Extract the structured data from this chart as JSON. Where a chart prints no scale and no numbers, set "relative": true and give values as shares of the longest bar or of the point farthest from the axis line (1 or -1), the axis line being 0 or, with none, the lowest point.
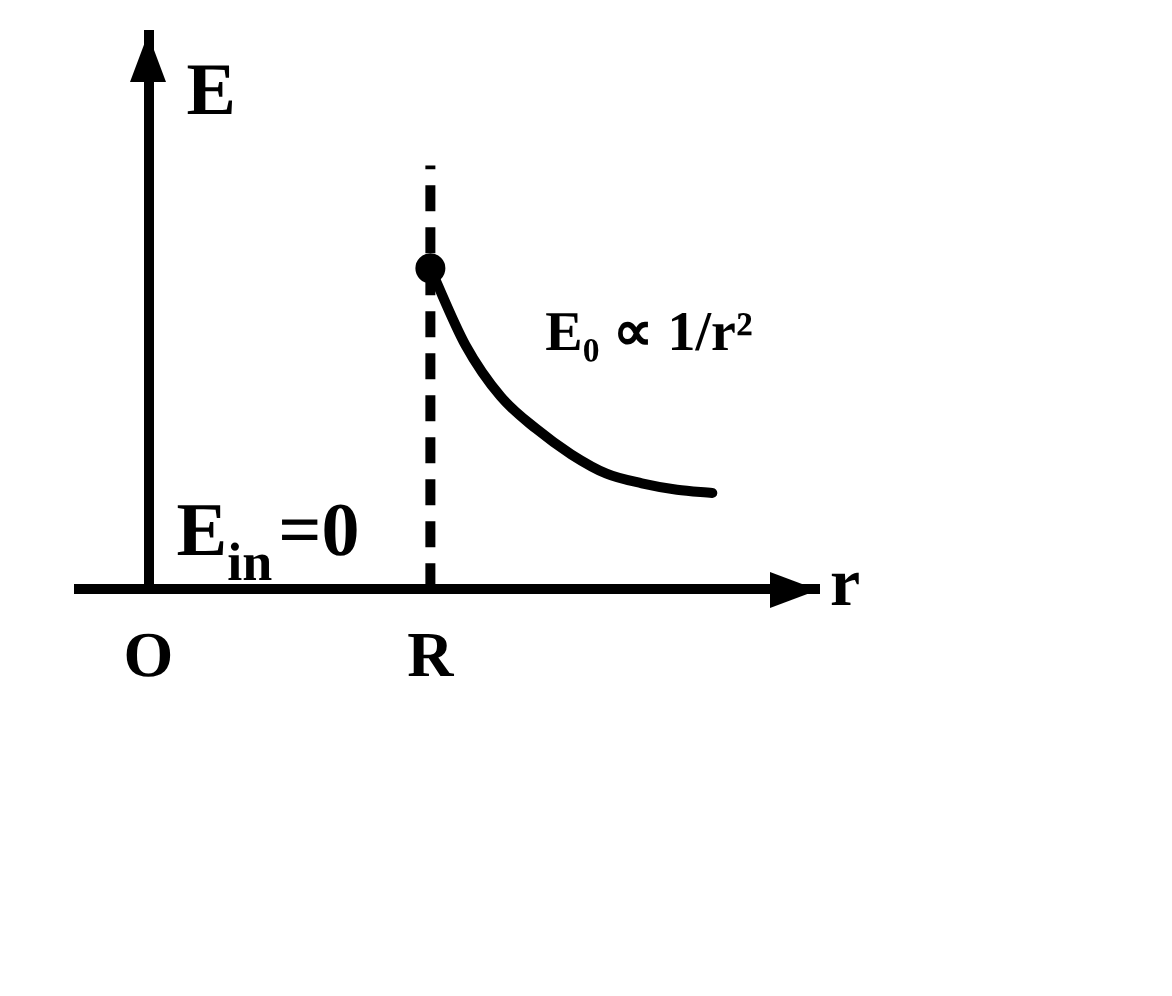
{
  "chart_data": {
    "type": "line",
    "xlabel": "r",
    "ylabel": "E",
    "relative": true,
    "categories": [
      null,
      null,
      "O",
      null,
      null,
      null,
      null,
      null,
      null,
      null,
      "R",
      null,
      null,
      null,
      null,
      null,
      null,
      null,
      null,
      null,
      null,
      null
    ],
    "series": [
      {
        "name": "E₀ ∝ 1/r²",
        "color": "#000000",
        "marker": "none",
        "values": [
          null,
          null,
          null,
          null,
          null,
          null,
          null,
          null,
          null,
          null,
          1,
          0.76,
          0.6,
          0.5,
          0.42,
          0.36,
          0.33,
          0.31,
          0.3,
          null,
          null,
          null
        ]
      },
      {
        "type": "scatter",
        "color": "#000000",
        "marker": "circle",
        "values": [
          null,
          null,
          null,
          null,
          null,
          null,
          null,
          null,
          null,
          null,
          1,
          null,
          null,
          null,
          null,
          null,
          null,
          null,
          null,
          null,
          null,
          null
        ]
      }
    ],
    "ref_lines": [
      {
        "axis": "x",
        "value": "R",
        "line_style": "dashed",
        "color": "#000000"
      }
    ],
    "annotations": [
      "E$_{in}$=0"
    ]
  }
}
